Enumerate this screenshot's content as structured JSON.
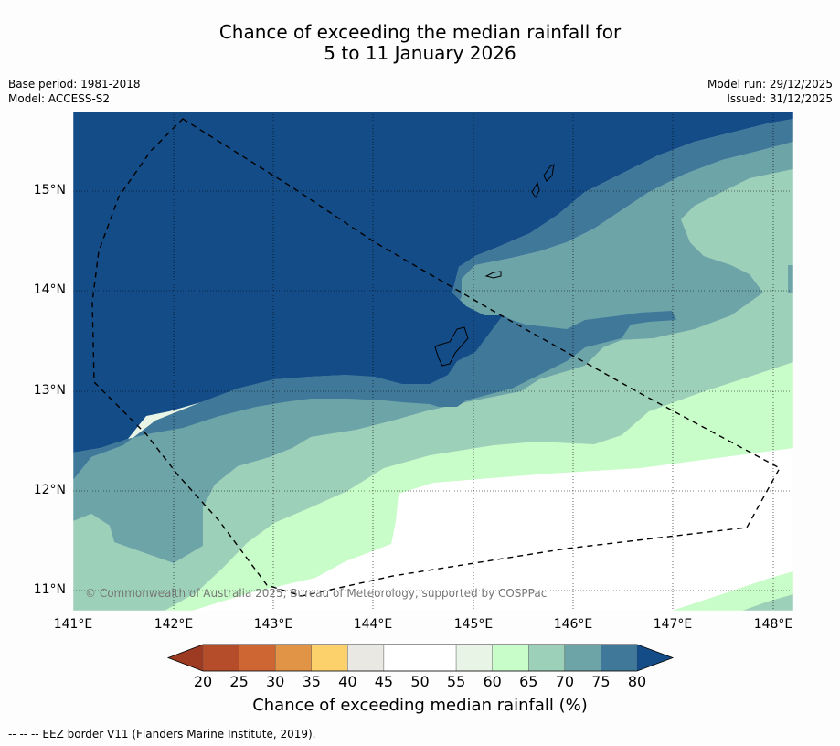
{
  "header": {
    "title_line1": "Chance of exceeding the median rainfall for",
    "title_line2": "5 to 11 January 2026",
    "base_period": "Base period: 1981-2018",
    "model": "Model: ACCESS-S2",
    "model_run": "Model run: 29/12/2025",
    "issued": "Issued: 31/12/2025"
  },
  "map": {
    "lat_labels": [
      "15°N",
      "14°N",
      "13°N",
      "12°N",
      "11°N"
    ],
    "lon_labels": [
      "141°E",
      "142°E",
      "143°E",
      "144°E",
      "145°E",
      "146°E",
      "147°E",
      "148°E"
    ],
    "copyright": "© Commonwealth of Australia 2025, Bureau of Meteorology, supported by COSPPac",
    "extent": {
      "lon_min": 141.0,
      "lon_max": 148.2,
      "lat_min": 10.8,
      "lat_max": 15.8
    }
  },
  "colorbar": {
    "ticks": [
      "20",
      "25",
      "30",
      "35",
      "40",
      "45",
      "50",
      "55",
      "60",
      "65",
      "70",
      "75",
      "80"
    ],
    "colors": [
      "#9c3a22",
      "#b54c2a",
      "#cd6633",
      "#e29446",
      "#fcd06a",
      "#e9e8e2",
      "#ffffff",
      "#ffffff",
      "#e8f4e6",
      "#c8fcc8",
      "#9cd0b8",
      "#6ca4a8",
      "#40789a",
      "#134c87"
    ],
    "label": "Chance of exceeding median rainfall (%)"
  },
  "legend": {
    "eez": "--  --  -- EEZ border V11 (Flanders Marine Institute, 2019)."
  }
}
